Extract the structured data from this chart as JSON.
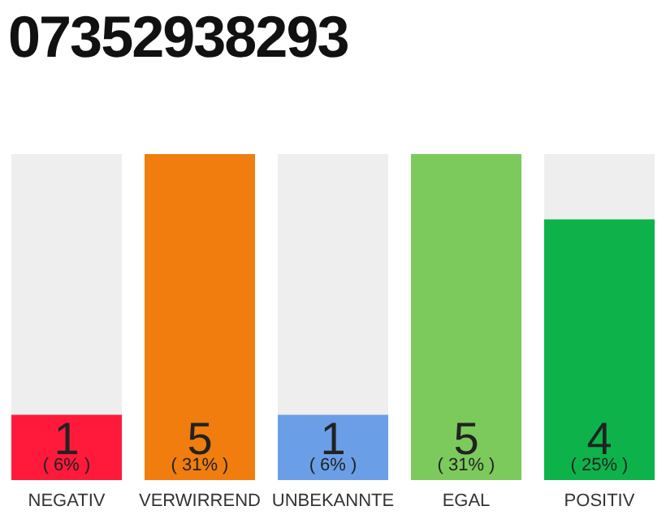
{
  "chart_data": {
    "type": "bar",
    "title": "07352938293",
    "categories": [
      "NEGATIV",
      "VERWIRREND",
      "UNBEKANNTE",
      "EGAL",
      "POSITIV"
    ],
    "values": [
      1,
      5,
      1,
      5,
      4
    ],
    "colors": [
      "#ff1a3c",
      "#f07d0e",
      "#6a9fe8",
      "#7cca5c",
      "#0db34a"
    ],
    "data_labels": true,
    "annotations": [
      "( 6% )",
      "( 31% )",
      "( 6% )",
      "( 31% )",
      "( 25% )"
    ]
  }
}
